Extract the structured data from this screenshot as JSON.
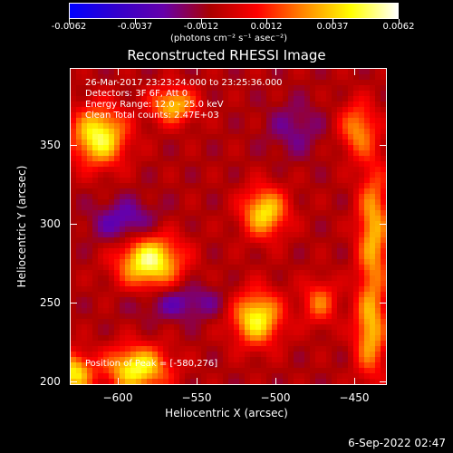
{
  "colorbar": {
    "tick_labels": [
      "-0.0062",
      "-0.0037",
      "-0.0012",
      "0.0012",
      "0.0037",
      "0.0062"
    ],
    "units": "(photons cm⁻² s⁻¹ asec⁻²)",
    "colormap": [
      "#0000ff",
      "#3300cc",
      "#6600aa",
      "#aa0000",
      "#ff0000",
      "#ff8800",
      "#ffff00",
      "#ffffff"
    ]
  },
  "title": "Reconstructed RHESSI Image",
  "info": {
    "line1": "26-Mar-2017 23:23:24.000 to 23:25:36.000",
    "line2": "Detectors: 3F 6F, Att 0",
    "line3": "Energy Range: 12.0 - 25.0 keV",
    "line4": "Clean    Total counts: 2.47E+03",
    "peak": "Position of Peak = [-580,276]"
  },
  "chart_data": {
    "type": "heatmap",
    "title": "Reconstructed RHESSI Image",
    "xlabel": "Heliocentric X (arcsec)",
    "ylabel": "Heliocentric Y (arcsec)",
    "xlim": [
      -630,
      -430
    ],
    "ylim": [
      198,
      398
    ],
    "x_ticks": [
      -600,
      -550,
      -500,
      -450
    ],
    "y_ticks": [
      200,
      250,
      300,
      350
    ],
    "x_tick_labels": [
      "−600",
      "−550",
      "−500",
      "−450"
    ],
    "y_tick_labels": [
      "200",
      "250",
      "300",
      "350"
    ],
    "blobs": [
      {
        "x": -580,
        "y": 276,
        "value": 0.0062,
        "sx": 14,
        "sy": 12
      },
      {
        "x": -507,
        "y": 307,
        "value": 0.005,
        "sx": 10,
        "sy": 11
      },
      {
        "x": -512,
        "y": 240,
        "value": 0.0055,
        "sx": 11,
        "sy": 12
      },
      {
        "x": -612,
        "y": 355,
        "value": 0.0058,
        "sx": 12,
        "sy": 13
      },
      {
        "x": -565,
        "y": 375,
        "value": 0.0045,
        "sx": 10,
        "sy": 8
      },
      {
        "x": -588,
        "y": 208,
        "value": 0.0056,
        "sx": 14,
        "sy": 10
      },
      {
        "x": -628,
        "y": 205,
        "value": 0.005,
        "sx": 8,
        "sy": 9
      },
      {
        "x": -438,
        "y": 295,
        "value": 0.0042,
        "sx": 7,
        "sy": 30
      },
      {
        "x": -440,
        "y": 230,
        "value": 0.004,
        "sx": 7,
        "sy": 20
      },
      {
        "x": -472,
        "y": 250,
        "value": 0.003,
        "sx": 8,
        "sy": 10
      },
      {
        "x": -448,
        "y": 360,
        "value": 0.0035,
        "sx": 8,
        "sy": 12
      },
      {
        "x": -488,
        "y": 360,
        "value": -0.0015,
        "sx": 12,
        "sy": 12
      },
      {
        "x": -560,
        "y": 250,
        "value": -0.002,
        "sx": 20,
        "sy": 8
      },
      {
        "x": -595,
        "y": 300,
        "value": -0.0025,
        "sx": 14,
        "sy": 10
      }
    ],
    "grid": false
  },
  "date_stamp": "6-Sep-2022 02:47"
}
